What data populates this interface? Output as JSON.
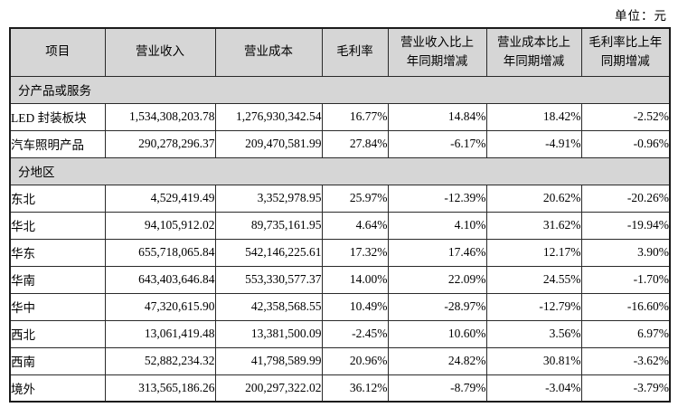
{
  "meta": {
    "unit_label": "单位：元"
  },
  "colors": {
    "header_bg": "#d6d6d6",
    "border": "#2a2a2a",
    "text": "#000000"
  },
  "table": {
    "columns": [
      {
        "key": "item",
        "label": "项目"
      },
      {
        "key": "revenue",
        "label": "营业收入"
      },
      {
        "key": "cost",
        "label": "营业成本"
      },
      {
        "key": "margin",
        "label": "毛利率"
      },
      {
        "key": "revenue_yoy",
        "label": "营业收入比上\n年同期增减"
      },
      {
        "key": "cost_yoy",
        "label": "营业成本比上\n年同期增减"
      },
      {
        "key": "margin_yoy",
        "label": "毛利率比上年\n同期增减"
      }
    ],
    "sections": [
      {
        "header": "分产品或服务",
        "rows": [
          [
            "LED 封装板块",
            "1,534,308,203.78",
            "1,276,930,342.54",
            "16.77%",
            "14.84%",
            "18.42%",
            "-2.52%"
          ],
          [
            "汽车照明产品",
            "290,278,296.37",
            "209,470,581.99",
            "27.84%",
            "-6.17%",
            "-4.91%",
            "-0.96%"
          ]
        ]
      },
      {
        "header": "分地区",
        "rows": [
          [
            "东北",
            "4,529,419.49",
            "3,352,978.95",
            "25.97%",
            "-12.39%",
            "20.62%",
            "-20.26%"
          ],
          [
            "华北",
            "94,105,912.02",
            "89,735,161.95",
            "4.64%",
            "4.10%",
            "31.62%",
            "-19.94%"
          ],
          [
            "华东",
            "655,718,065.84",
            "542,146,225.61",
            "17.32%",
            "17.46%",
            "12.17%",
            "3.90%"
          ],
          [
            "华南",
            "643,403,646.84",
            "553,330,577.37",
            "14.00%",
            "22.09%",
            "24.55%",
            "-1.70%"
          ],
          [
            "华中",
            "47,320,615.90",
            "42,358,568.55",
            "10.49%",
            "-28.97%",
            "-12.79%",
            "-16.60%"
          ],
          [
            "西北",
            "13,061,419.48",
            "13,381,500.09",
            "-2.45%",
            "10.60%",
            "3.56%",
            "6.97%"
          ],
          [
            "西南",
            "52,882,234.32",
            "41,798,589.99",
            "20.96%",
            "24.82%",
            "30.81%",
            "-3.62%"
          ],
          [
            "境外",
            "313,565,186.26",
            "200,297,322.02",
            "36.12%",
            "-8.79%",
            "-3.04%",
            "-3.79%"
          ]
        ]
      }
    ]
  }
}
